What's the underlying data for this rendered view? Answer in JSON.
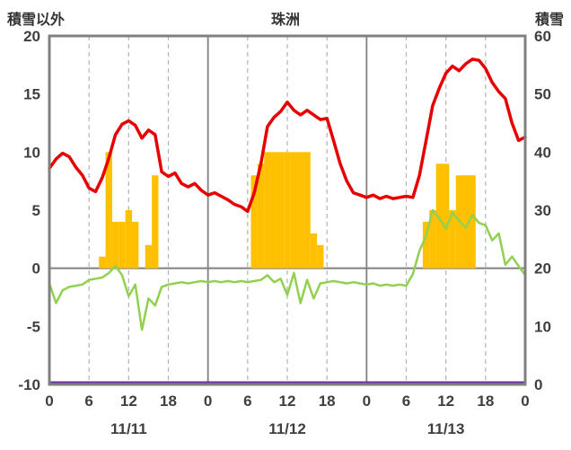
{
  "header": {
    "left_label": "積雪以外",
    "title": "珠洲",
    "right_label": "積雪"
  },
  "chart_data": {
    "type": "line",
    "title": "珠洲",
    "x": {
      "total_hours": 72,
      "tick_step": 6,
      "tick_labels": [
        "0",
        "6",
        "12",
        "18",
        "0",
        "6",
        "12",
        "18",
        "0",
        "6",
        "12",
        "18",
        "0"
      ],
      "day_labels": [
        "11/11",
        "11/12",
        "11/13"
      ],
      "day_label_center_hours": [
        12,
        36,
        60
      ]
    },
    "left_axis": {
      "label": "積雪以外",
      "min": -10,
      "max": 20,
      "ticks": [
        20,
        15,
        10,
        5,
        0,
        -5,
        -10
      ]
    },
    "right_axis": {
      "label": "積雪",
      "min": 0,
      "max": 60,
      "ticks": [
        60,
        50,
        40,
        30,
        20,
        10,
        0
      ]
    },
    "grid": {
      "vertical_dashed_every_hours": 6,
      "solid_day_boundaries": true,
      "horizontal_zero_line": true,
      "frame_color": "#808080",
      "dashed_color": "#b3b3b3"
    },
    "series": [
      {
        "name": "red-line",
        "kind": "line",
        "axis": "left",
        "color": "#e60000",
        "values": [
          8.6,
          9.4,
          9.9,
          9.6,
          8.7,
          8.0,
          6.9,
          6.6,
          7.8,
          9.5,
          11.5,
          12.4,
          12.7,
          12.3,
          11.2,
          11.9,
          11.5,
          8.3,
          7.9,
          8.2,
          7.3,
          7.0,
          7.3,
          6.7,
          6.3,
          6.5,
          6.2,
          5.9,
          5.5,
          5.3,
          4.9,
          6.5,
          9.0,
          12.2,
          13.0,
          13.5,
          14.3,
          13.6,
          13.2,
          13.6,
          13.2,
          12.8,
          12.9,
          11.0,
          9.0,
          7.5,
          6.5,
          6.3,
          6.1,
          6.3,
          6.0,
          6.2,
          6.0,
          6.1,
          6.2,
          6.1,
          8.0,
          11.0,
          14.0,
          15.5,
          16.8,
          17.4,
          17.0,
          17.6,
          18.0,
          17.9,
          17.2,
          16.0,
          15.2,
          14.6,
          12.5,
          11.0,
          11.3
        ]
      },
      {
        "name": "green-line",
        "kind": "line",
        "axis": "left",
        "color": "#92d050",
        "values": [
          -1.3,
          -3.0,
          -1.9,
          -1.6,
          -1.5,
          -1.4,
          -1.0,
          -0.9,
          -0.8,
          -0.4,
          0.2,
          -0.6,
          -2.4,
          -1.4,
          -5.3,
          -2.6,
          -3.2,
          -1.6,
          -1.4,
          -1.3,
          -1.2,
          -1.3,
          -1.2,
          -1.1,
          -1.2,
          -1.1,
          -1.2,
          -1.1,
          -1.2,
          -1.1,
          -1.2,
          -1.1,
          -1.0,
          -0.6,
          -1.2,
          -0.9,
          -2.3,
          -0.4,
          -3.0,
          -1.0,
          -2.6,
          -1.3,
          -1.2,
          -1.1,
          -1.2,
          -1.3,
          -1.2,
          -1.3,
          -1.4,
          -1.3,
          -1.5,
          -1.4,
          -1.5,
          -1.4,
          -1.5,
          -0.5,
          1.5,
          2.8,
          5.0,
          4.3,
          3.4,
          4.8,
          4.1,
          3.5,
          4.6,
          3.9,
          3.7,
          2.4,
          3.0,
          0.3,
          1.0,
          0.2,
          -0.6
        ]
      },
      {
        "name": "yellow-bars",
        "kind": "bar",
        "axis": "left",
        "color": "#ffc000",
        "values": [
          0,
          0,
          0,
          0,
          0,
          0,
          0,
          0,
          1,
          10,
          4,
          4,
          5,
          4,
          0,
          2,
          8,
          0,
          0,
          0,
          0,
          0,
          0,
          0,
          0,
          0,
          0,
          0,
          0,
          0,
          0,
          8,
          9,
          10,
          10,
          10,
          10,
          10,
          10,
          10,
          3,
          2,
          0,
          0,
          0,
          0,
          0,
          0,
          0,
          0,
          0,
          0,
          0,
          0,
          0,
          0,
          0,
          4,
          5,
          9,
          9,
          5,
          8,
          8,
          8,
          0,
          0,
          0,
          0,
          0,
          0,
          0,
          0
        ]
      },
      {
        "name": "purple-line-snow",
        "kind": "constant-line",
        "axis": "right",
        "color": "#7030a0",
        "constant_value": 0
      }
    ]
  }
}
